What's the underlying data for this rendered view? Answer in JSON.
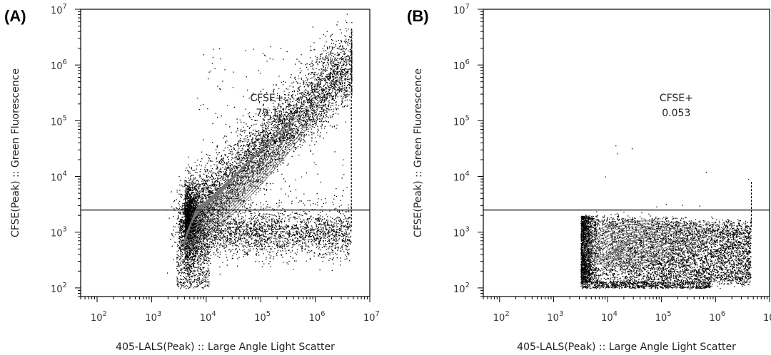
{
  "chart_data": [
    {
      "type": "scatter",
      "panel_label": "(A)",
      "xlabel": "405-LALS(Peak) :: Large Angle Light Scatter",
      "ylabel": "CFSE(Peak) :: Green Fluorescence",
      "xscale": "log",
      "yscale": "log",
      "xlim": [
        50,
        10000000
      ],
      "ylim": [
        70,
        10000000
      ],
      "xticks": [
        100,
        1000,
        10000,
        100000,
        1000000,
        10000000
      ],
      "yticks": [
        100,
        1000,
        10000,
        100000,
        1000000,
        10000000
      ],
      "tick_labels": {
        "base": "10",
        "exponents": [
          "2",
          "3",
          "4",
          "5",
          "6",
          "7"
        ]
      },
      "gate": {
        "name": "CFSE+",
        "value": "79.1",
        "threshold_y": 2500
      },
      "population": "diagonal cloud from (4e3, 1e3) to (4e6, 1e6) plus low band near y≈1e3, x 3e3–4e6",
      "style": "contour over dot plot"
    },
    {
      "type": "scatter",
      "panel_label": "(B)",
      "xlabel": "405-LALS(Peak) :: Large Angle Light Scatter",
      "ylabel": "CFSE(Peak) :: Green Fluorescence",
      "xscale": "log",
      "yscale": "log",
      "xlim": [
        50,
        10000000
      ],
      "ylim": [
        70,
        10000000
      ],
      "xticks": [
        100,
        1000,
        10000,
        100000,
        1000000,
        10000000
      ],
      "yticks": [
        100,
        1000,
        10000,
        100000,
        1000000,
        10000000
      ],
      "tick_labels": {
        "base": "10",
        "exponents": [
          "2",
          "3",
          "4",
          "5",
          "6",
          "7"
        ]
      },
      "gate": {
        "name": "CFSE+",
        "value": "0.053",
        "threshold_y": 2500
      },
      "population": "wedge cloud x 3e3–4e6, y 1e2–2e3 with a few scattered events above gate",
      "style": "contour over dot plot"
    }
  ]
}
